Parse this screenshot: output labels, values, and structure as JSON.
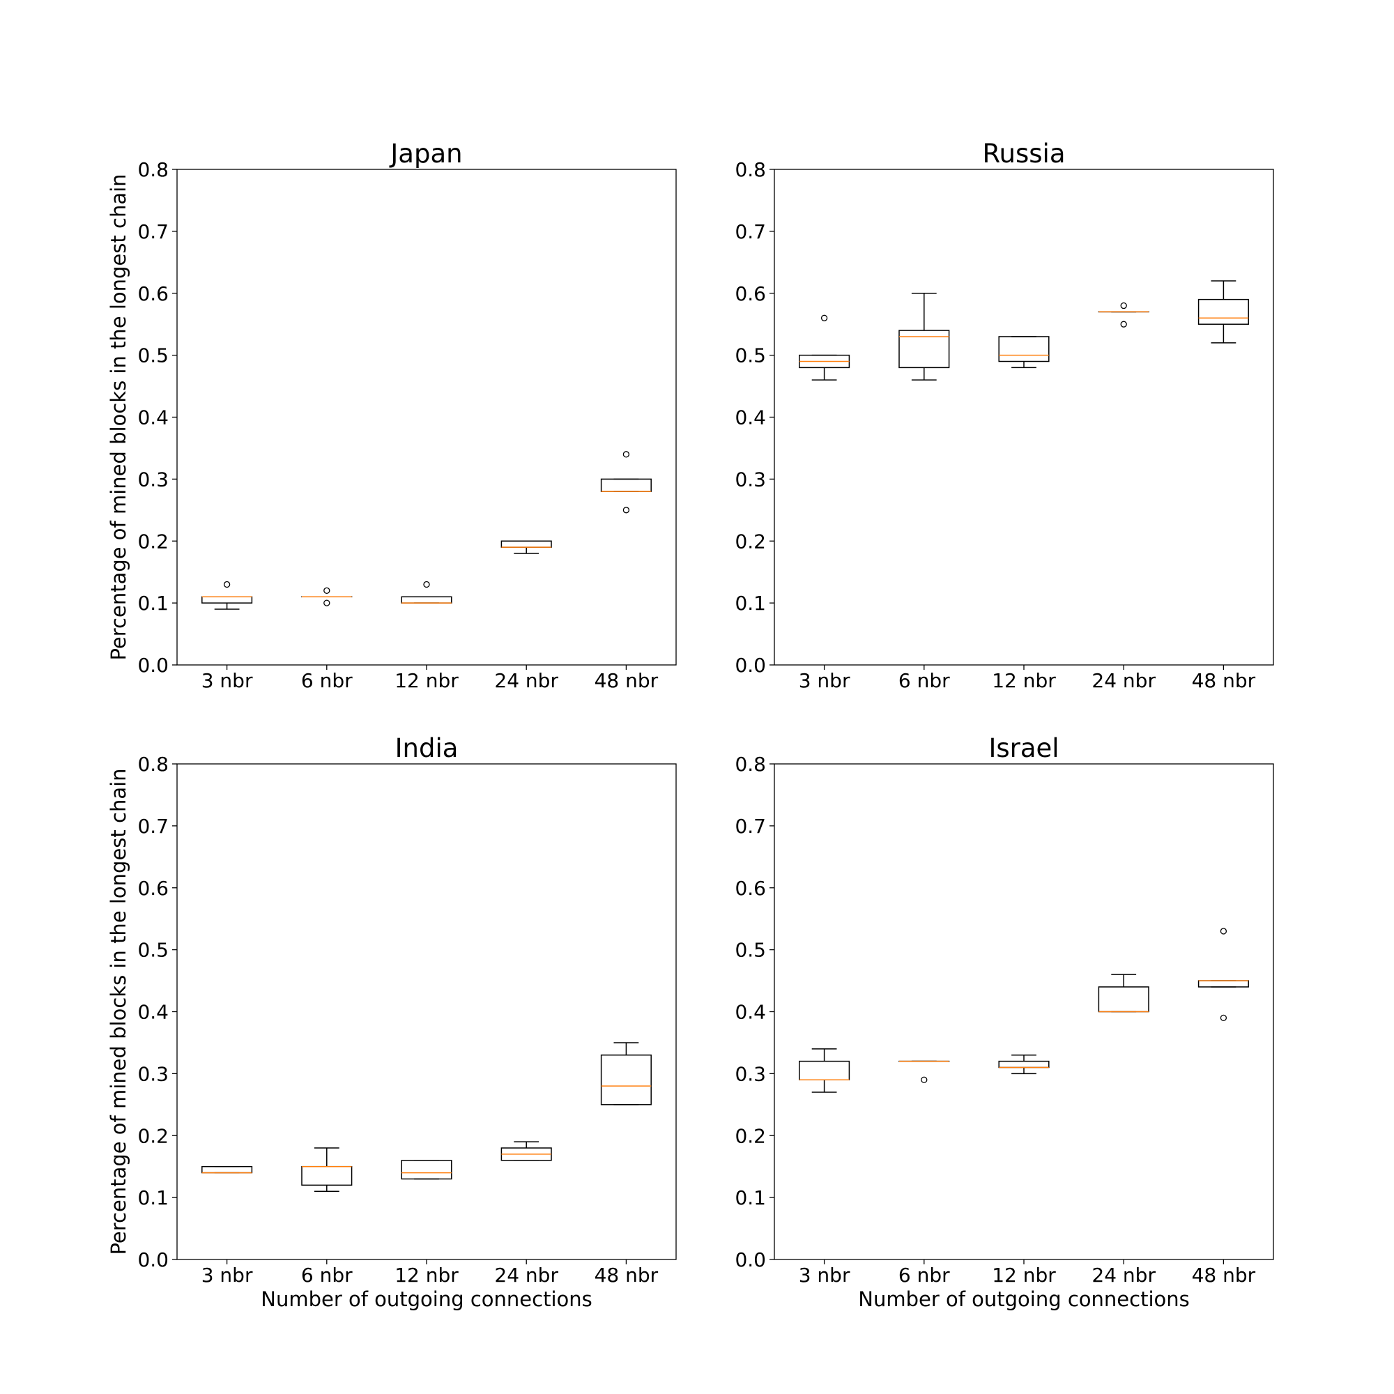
{
  "chart_data": [
    {
      "type": "box",
      "title": "Japan",
      "ylabel": "Percentage of mined blocks in the longest chain",
      "categories": [
        "3 nbr",
        "6 nbr",
        "12 nbr",
        "24 nbr",
        "48 nbr"
      ],
      "boxes": [
        {
          "whislo": 0.09,
          "q1": 0.1,
          "med": 0.11,
          "q3": 0.11,
          "whishi": 0.11,
          "fliers": [
            0.13
          ]
        },
        {
          "whislo": 0.11,
          "q1": 0.11,
          "med": 0.11,
          "q3": 0.11,
          "whishi": 0.11,
          "fliers": [
            0.12,
            0.1
          ]
        },
        {
          "whislo": 0.1,
          "q1": 0.1,
          "med": 0.1,
          "q3": 0.11,
          "whishi": 0.11,
          "fliers": [
            0.13
          ]
        },
        {
          "whislo": 0.18,
          "q1": 0.19,
          "med": 0.19,
          "q3": 0.2,
          "whishi": 0.2,
          "fliers": []
        },
        {
          "whislo": 0.28,
          "q1": 0.28,
          "med": 0.28,
          "q3": 0.3,
          "whishi": 0.3,
          "fliers": [
            0.34,
            0.25
          ]
        }
      ],
      "box_color": "#000000",
      "median_color": "#ff7f0e",
      "ylim": [
        0,
        0.8
      ],
      "yticks": [
        {
          "value": 0,
          "label": "0.0"
        },
        0.1,
        0.2,
        0.3,
        0.4,
        0.5,
        0.6,
        0.7,
        0.8
      ]
    },
    {
      "type": "box",
      "title": "Russia",
      "categories": [
        "3 nbr",
        "6 nbr",
        "12 nbr",
        "24 nbr",
        "48 nbr"
      ],
      "boxes": [
        {
          "whislo": 0.46,
          "q1": 0.48,
          "med": 0.49,
          "q3": 0.5,
          "whishi": 0.5,
          "fliers": [
            0.56
          ]
        },
        {
          "whislo": 0.46,
          "q1": 0.48,
          "med": 0.53,
          "q3": 0.54,
          "whishi": 0.6,
          "fliers": []
        },
        {
          "whislo": 0.48,
          "q1": 0.49,
          "med": 0.5,
          "q3": 0.53,
          "whishi": 0.53,
          "fliers": []
        },
        {
          "whislo": 0.57,
          "q1": 0.57,
          "med": 0.57,
          "q3": 0.57,
          "whishi": 0.57,
          "fliers": [
            0.58,
            0.55
          ]
        },
        {
          "whislo": 0.52,
          "q1": 0.55,
          "med": 0.56,
          "q3": 0.59,
          "whishi": 0.62,
          "fliers": []
        }
      ],
      "box_color": "#000000",
      "median_color": "#ff7f0e",
      "ylim": [
        0,
        0.8
      ],
      "yticks": [
        {
          "value": 0,
          "label": "0.0"
        },
        0.1,
        0.2,
        0.3,
        0.4,
        0.5,
        0.6,
        0.7,
        0.8
      ]
    },
    {
      "type": "box",
      "title": "India",
      "ylabel": "Percentage of mined blocks in the longest chain",
      "xlabel": "Number of outgoing connections",
      "categories": [
        "3 nbr",
        "6 nbr",
        "12 nbr",
        "24 nbr",
        "48 nbr"
      ],
      "boxes": [
        {
          "whislo": 0.14,
          "q1": 0.14,
          "med": 0.14,
          "q3": 0.15,
          "whishi": 0.15,
          "fliers": []
        },
        {
          "whislo": 0.11,
          "q1": 0.12,
          "med": 0.15,
          "q3": 0.15,
          "whishi": 0.18,
          "fliers": []
        },
        {
          "whislo": 0.13,
          "q1": 0.13,
          "med": 0.14,
          "q3": 0.16,
          "whishi": 0.16,
          "fliers": []
        },
        {
          "whislo": 0.16,
          "q1": 0.16,
          "med": 0.17,
          "q3": 0.18,
          "whishi": 0.19,
          "fliers": []
        },
        {
          "whislo": 0.25,
          "q1": 0.25,
          "med": 0.28,
          "q3": 0.33,
          "whishi": 0.35,
          "fliers": []
        }
      ],
      "box_color": "#000000",
      "median_color": "#ff7f0e",
      "ylim": [
        0,
        0.8
      ],
      "yticks": [
        {
          "value": 0,
          "label": "0.0"
        },
        0.1,
        0.2,
        0.3,
        0.4,
        0.5,
        0.6,
        0.7,
        0.8
      ]
    },
    {
      "type": "box",
      "title": "Israel",
      "xlabel": "Number of outgoing connections",
      "categories": [
        "3 nbr",
        "6 nbr",
        "12 nbr",
        "24 nbr",
        "48 nbr"
      ],
      "boxes": [
        {
          "whislo": 0.27,
          "q1": 0.29,
          "med": 0.29,
          "q3": 0.32,
          "whishi": 0.34,
          "fliers": []
        },
        {
          "whislo": 0.32,
          "q1": 0.32,
          "med": 0.32,
          "q3": 0.32,
          "whishi": 0.32,
          "fliers": [
            0.29
          ]
        },
        {
          "whislo": 0.3,
          "q1": 0.31,
          "med": 0.31,
          "q3": 0.32,
          "whishi": 0.33,
          "fliers": []
        },
        {
          "whislo": 0.4,
          "q1": 0.4,
          "med": 0.4,
          "q3": 0.44,
          "whishi": 0.46,
          "fliers": []
        },
        {
          "whislo": 0.44,
          "q1": 0.44,
          "med": 0.45,
          "q3": 0.45,
          "whishi": 0.45,
          "fliers": [
            0.53,
            0.39
          ]
        }
      ],
      "box_color": "#000000",
      "median_color": "#ff7f0e",
      "ylim": [
        0,
        0.8
      ],
      "yticks": [
        {
          "value": 0,
          "label": "0.0"
        },
        0.1,
        0.2,
        0.3,
        0.4,
        0.5,
        0.6,
        0.7,
        0.8
      ]
    }
  ]
}
